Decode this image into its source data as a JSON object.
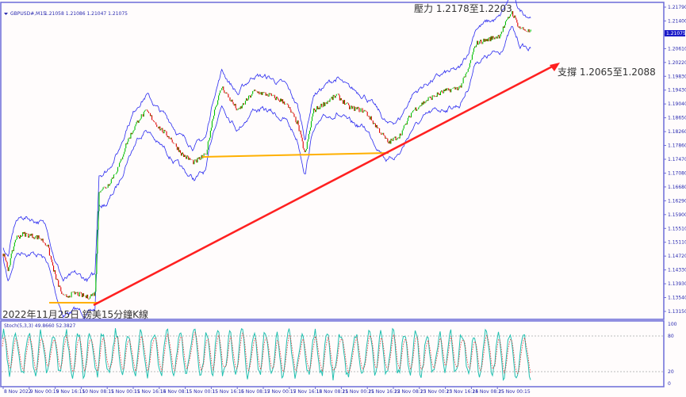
{
  "header": {
    "symbol": "GBPUSD#,M15",
    "ohlc": "1.21058 1.21086 1.21047 1.21075"
  },
  "annotations": {
    "resistance": "壓力 1.2178至1.2203",
    "support": "支撐 1.2065至1.2088",
    "caption": "2022年11月25日 鎊美15分鐘K線"
  },
  "colors": {
    "frame": "#6b6bd8",
    "band": "#2a2af0",
    "bull": "#00c000",
    "bear": "#e00000",
    "trend": "#ff2020",
    "support_line": "#ffb000",
    "stoch_main": "#20c0b0",
    "stoch_signal": "#e03030"
  },
  "chart_data": {
    "type": "line",
    "price_axis": {
      "ticks": [
        "1.21790",
        "1.21400",
        "1.21010",
        "1.20610",
        "1.20220",
        "1.19830",
        "1.19430",
        "1.19040",
        "1.18650",
        "1.18260",
        "1.17860",
        "1.17470",
        "1.17080",
        "1.16680",
        "1.16290",
        "1.15900",
        "1.15510",
        "1.15110",
        "1.14720",
        "1.14330",
        "1.13930",
        "1.13540",
        "1.13150"
      ],
      "range": [
        1.1315,
        1.2179
      ],
      "current": "1.21075"
    },
    "time_axis": [
      "8 Nov 2022",
      "9 Nov 00:15",
      "9 Nov 16:15",
      "10 Nov 08:15",
      "11 Nov 00:15",
      "11 Nov 16:15",
      "14 Nov 08:15",
      "15 Nov 00:15",
      "15 Nov 16:15",
      "16 Nov 08:15",
      "17 Nov 00:15",
      "17 Nov 16:15",
      "18 Nov 08:15",
      "21 Nov 00:15",
      "21 Nov 16:15",
      "22 Nov 08:15",
      "23 Nov 00:15",
      "23 Nov 16:15",
      "24 Nov 08:15",
      "25 Nov 00:15"
    ],
    "price_path": [
      [
        0,
        1.1479
      ],
      [
        12,
        1.1434
      ],
      [
        31,
        1.1524
      ],
      [
        51,
        1.1535
      ],
      [
        90,
        1.1524
      ],
      [
        109,
        1.1502
      ],
      [
        129,
        1.1412
      ],
      [
        148,
        1.1355
      ],
      [
        178,
        1.1367
      ],
      [
        207,
        1.1355
      ],
      [
        226,
        1.1367
      ],
      [
        236,
        1.1659
      ],
      [
        256,
        1.167
      ],
      [
        285,
        1.1727
      ],
      [
        304,
        1.1794
      ],
      [
        334,
        1.1862
      ],
      [
        353,
        1.1884
      ],
      [
        382,
        1.1839
      ],
      [
        412,
        1.1806
      ],
      [
        441,
        1.176
      ],
      [
        470,
        1.1738
      ],
      [
        499,
        1.176
      ],
      [
        519,
        1.1884
      ],
      [
        538,
        1.1952
      ],
      [
        558,
        1.1918
      ],
      [
        578,
        1.1884
      ],
      [
        617,
        1.194
      ],
      [
        656,
        1.1929
      ],
      [
        695,
        1.1907
      ],
      [
        724,
        1.185
      ],
      [
        743,
        1.176
      ],
      [
        763,
        1.1884
      ],
      [
        792,
        1.1907
      ],
      [
        821,
        1.1929
      ],
      [
        851,
        1.1895
      ],
      [
        890,
        1.1884
      ],
      [
        919,
        1.1839
      ],
      [
        948,
        1.1794
      ],
      [
        977,
        1.1816
      ],
      [
        1007,
        1.1884
      ],
      [
        1046,
        1.1918
      ],
      [
        1085,
        1.194
      ],
      [
        1124,
        1.1952
      ],
      [
        1143,
        1.1997
      ],
      [
        1163,
        1.2076
      ],
      [
        1192,
        1.2087
      ],
      [
        1221,
        1.2098
      ],
      [
        1251,
        1.2166
      ],
      [
        1270,
        1.2121
      ],
      [
        1299,
        1.21075
      ]
    ],
    "stochastic": {
      "label": "Stoch(5,3,3) 49.8660 52.3827",
      "levels": [
        "100",
        "80",
        "20",
        "0"
      ]
    }
  }
}
